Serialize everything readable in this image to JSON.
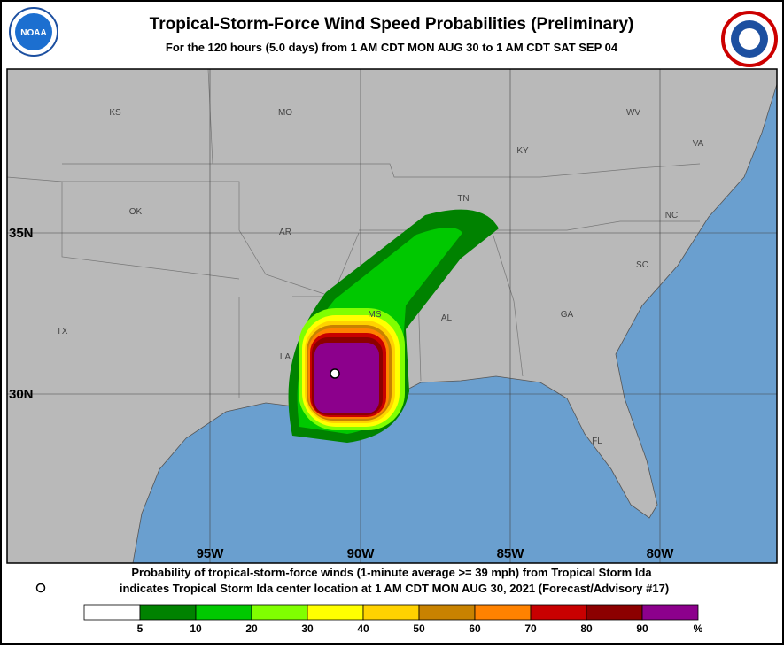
{
  "header": {
    "title": "Tropical-Storm-Force Wind Speed Probabilities (Preliminary)",
    "subtitle": "For the 120 hours (5.0 days) from 1 AM CDT MON AUG 30 to 1 AM CDT SAT SEP 04"
  },
  "map": {
    "states": [
      "KS",
      "MO",
      "KY",
      "WV",
      "VA",
      "OK",
      "AR",
      "TN",
      "NC",
      "SC",
      "TX",
      "MS",
      "AL",
      "GA",
      "LA",
      "FL"
    ],
    "lat_labels": [
      "35N",
      "30N"
    ],
    "lon_labels": [
      "95W",
      "90W",
      "85W",
      "80W"
    ]
  },
  "footer": {
    "lines": [
      "Probability of tropical-storm-force winds (1-minute average >= 39 mph) from Tropical Storm Ida",
      "indicates Tropical Storm Ida center location at 1 AM CDT MON AUG 30, 2021 (Forecast/Advisory #17)"
    ]
  },
  "legend": {
    "colors": [
      "#ffffff",
      "#008200",
      "#00c800",
      "#80ff00",
      "#ffff00",
      "#ffd200",
      "#c88200",
      "#ff8200",
      "#c80000",
      "#8c0000",
      "#8c008c"
    ],
    "ticks": [
      5,
      10,
      20,
      30,
      40,
      50,
      60,
      70,
      80,
      90
    ],
    "unit": "%"
  }
}
